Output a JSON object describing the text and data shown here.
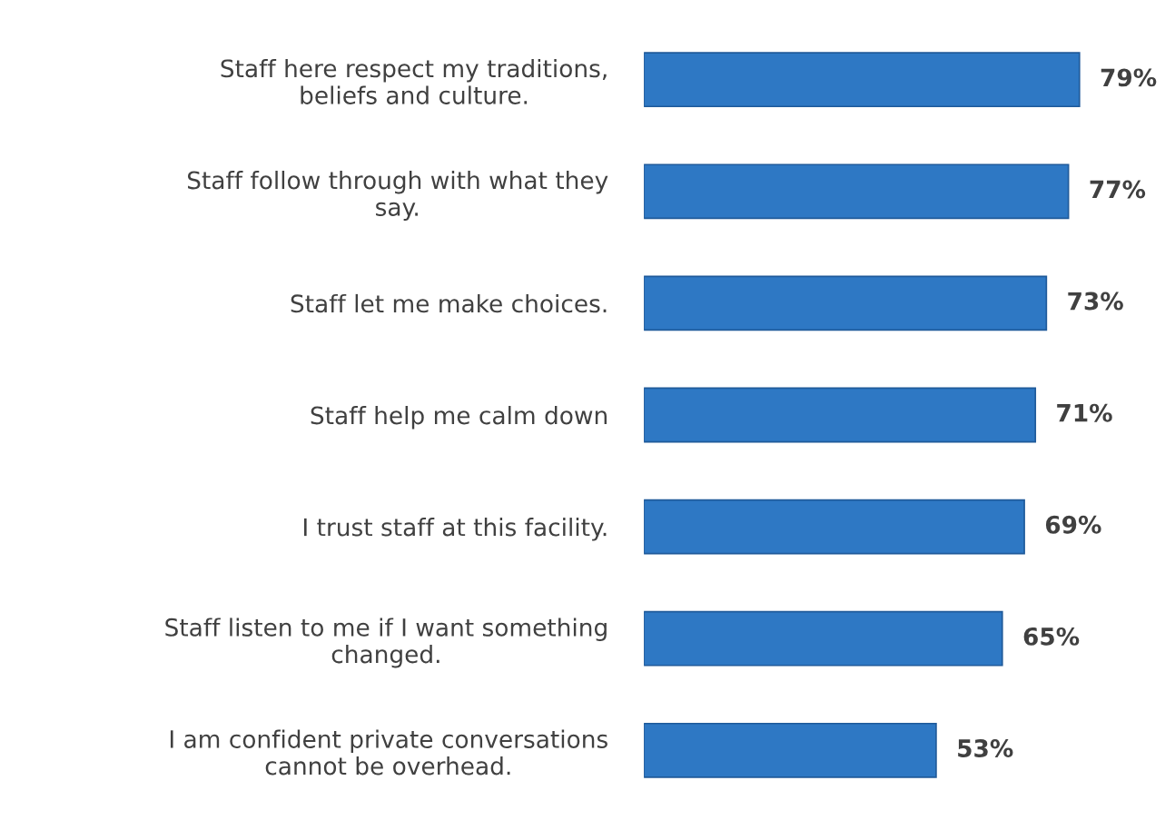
{
  "chart_data": {
    "type": "bar",
    "orientation": "horizontal",
    "categories": [
      "Staff here respect my traditions,\nbeliefs and culture.",
      "Staff follow through with what they\nsay.",
      "Staff let me make choices.",
      "Staff help me calm down",
      "I trust staff at this facility.",
      "Staff listen to me if I want something\nchanged.",
      "I am confident private conversations\ncannot be overhead."
    ],
    "values": [
      79,
      77,
      73,
      71,
      69,
      65,
      53
    ],
    "value_labels": [
      "79%",
      "77%",
      "73%",
      "71%",
      "69%",
      "65%",
      "53%"
    ],
    "color": "#2e78c4",
    "grid": false,
    "legend": false
  }
}
